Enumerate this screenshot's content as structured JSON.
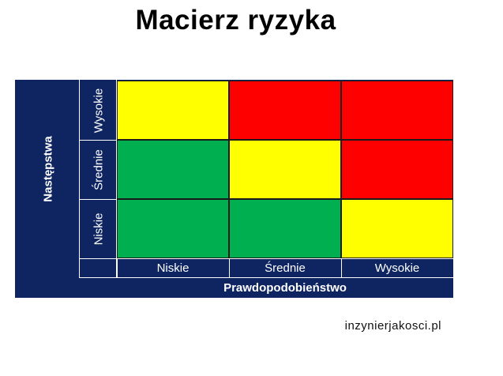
{
  "title": "Macierz ryzyka",
  "y_axis": {
    "title": "Następstwa",
    "levels": [
      "Wysokie",
      "Średnie",
      "Niskie"
    ]
  },
  "x_axis": {
    "title": "Prawdopodobieństwo",
    "levels": [
      "Niskie",
      "Średnie",
      "Wysokie"
    ]
  },
  "matrix": {
    "rows": [
      {
        "consequence": "Wysokie",
        "cells": [
          "yellow",
          "red",
          "red"
        ]
      },
      {
        "consequence": "Średnie",
        "cells": [
          "green",
          "yellow",
          "red"
        ]
      },
      {
        "consequence": "Niskie",
        "cells": [
          "green",
          "green",
          "yellow"
        ]
      }
    ]
  },
  "colors": {
    "header_bg": "#0e2562",
    "green": "#00b050",
    "yellow": "#ffff00",
    "red": "#ff0000"
  },
  "watermark": "inzynierjakosci.pl"
}
